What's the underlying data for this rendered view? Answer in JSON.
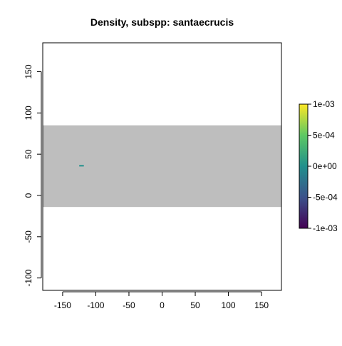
{
  "chart_data": {
    "type": "heatmap",
    "title": "Density, subspp: santaecrucis",
    "xlabel": "",
    "ylabel": "",
    "xlim": [
      -180,
      180
    ],
    "ylim": [
      -115,
      185
    ],
    "x_ticks": [
      -150,
      -100,
      -50,
      0,
      50,
      100,
      150
    ],
    "x_tick_labels": [
      "-150",
      "-100",
      "-50",
      "0",
      "50",
      "100",
      "150"
    ],
    "y_ticks": [
      -100,
      -50,
      0,
      50,
      100,
      150
    ],
    "y_tick_labels": [
      "-100",
      "-50",
      "0",
      "50",
      "100",
      "150"
    ],
    "grid": false,
    "raster_extent": {
      "xmin": -180,
      "xmax": 180,
      "ymin": -14,
      "ymax": 85
    },
    "raster_na_color": "#bebebe",
    "cells": [
      {
        "xmin": -125,
        "xmax": -118,
        "y": 36,
        "value": 0,
        "color": "#21908c"
      }
    ],
    "legend": {
      "position": "right",
      "min": -0.001,
      "max": 0.001,
      "ticks": [
        -0.001,
        -0.0005,
        0,
        0.0005,
        0.001
      ],
      "tick_labels": [
        "-1e-03",
        "-5e-04",
        "0e+00",
        "5e-04",
        "1e-03"
      ],
      "colormap": [
        "#440154",
        "#3b528b",
        "#21908c",
        "#5dc863",
        "#fde725"
      ]
    }
  }
}
